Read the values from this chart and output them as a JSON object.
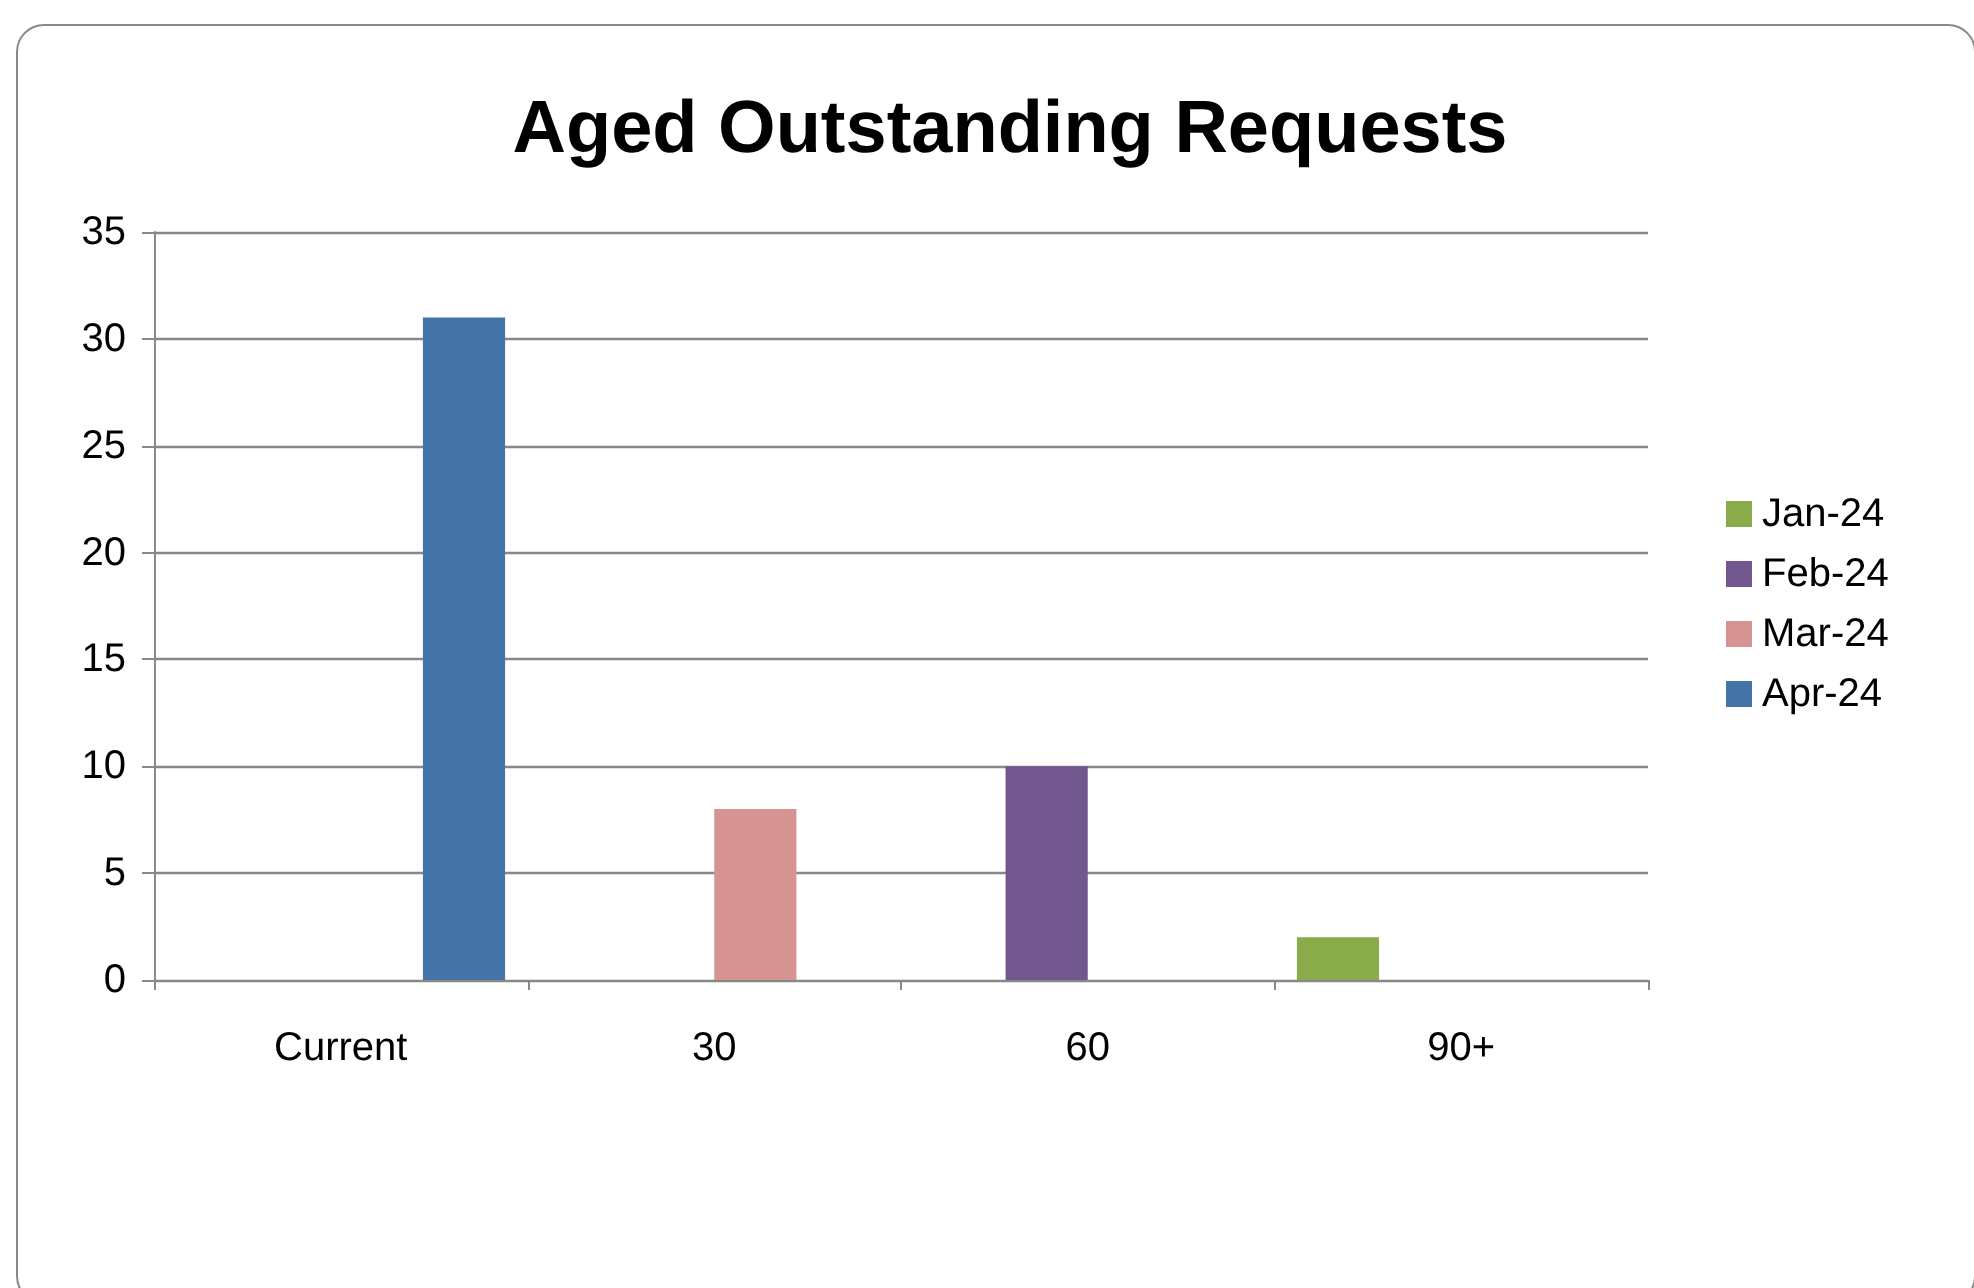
{
  "chart_data": {
    "type": "bar",
    "title": "Aged Outstanding Requests",
    "categories": [
      "Current",
      "30",
      "60",
      "90+"
    ],
    "series": [
      {
        "name": "Jan-24",
        "color": "#8aab4a",
        "values": [
          null,
          null,
          null,
          2
        ]
      },
      {
        "name": "Feb-24",
        "color": "#72578f",
        "values": [
          null,
          null,
          10,
          null
        ]
      },
      {
        "name": "Mar-24",
        "color": "#d59391",
        "values": [
          null,
          8,
          null,
          null
        ]
      },
      {
        "name": "Apr-24",
        "color": "#4474a8",
        "values": [
          31,
          null,
          null,
          null
        ]
      }
    ],
    "ylim": [
      0,
      35
    ],
    "yticks": [
      0,
      5,
      10,
      15,
      20,
      25,
      30,
      35
    ],
    "grid": "y",
    "legend": "right"
  }
}
